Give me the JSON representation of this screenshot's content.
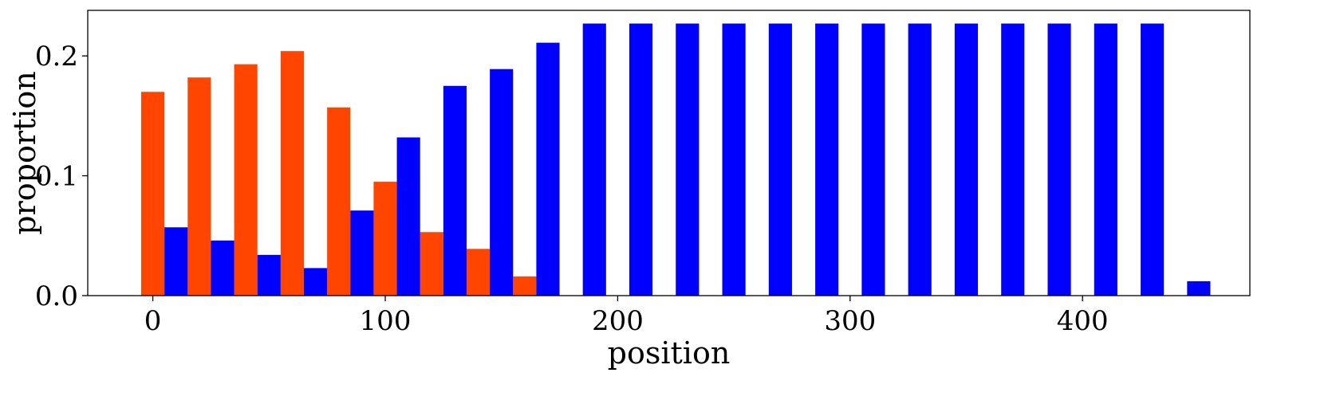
{
  "chart_data": {
    "type": "bar",
    "title": "",
    "xlabel": "position",
    "ylabel": "proportion",
    "xlim": [
      -28,
      472
    ],
    "ylim": [
      0,
      0.238
    ],
    "bar_width": 10,
    "xticks": [
      0,
      100,
      200,
      300,
      400
    ],
    "xtick_labels": [
      "0",
      "100",
      "200",
      "300",
      "400"
    ],
    "yticks": [
      0.0,
      0.1,
      0.2
    ],
    "ytick_labels": [
      "0.0",
      "0.1",
      "0.2"
    ],
    "grid": false,
    "legend": "none",
    "series": [
      {
        "color": "#ff4500",
        "x": [
          0,
          20,
          40,
          60,
          80,
          100,
          120,
          140,
          160
        ],
        "values": [
          0.17,
          0.182,
          0.193,
          0.204,
          0.157,
          0.095,
          0.053,
          0.039,
          0.016
        ]
      },
      {
        "color": "#0000ff",
        "x": [
          10,
          30,
          50,
          70,
          90,
          110,
          130,
          150,
          170,
          190,
          210,
          230,
          250,
          270,
          290,
          310,
          330,
          350,
          370,
          390,
          410,
          430,
          450
        ],
        "values": [
          0.057,
          0.046,
          0.034,
          0.023,
          0.071,
          0.132,
          0.175,
          0.189,
          0.211,
          0.227,
          0.227,
          0.227,
          0.227,
          0.227,
          0.227,
          0.227,
          0.227,
          0.227,
          0.227,
          0.227,
          0.227,
          0.227,
          0.012
        ]
      }
    ]
  }
}
